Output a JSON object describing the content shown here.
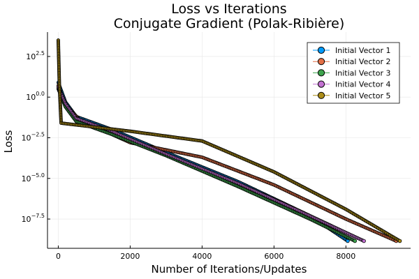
{
  "chart_data": {
    "type": "scatter",
    "title": "Loss vs Iterations",
    "subtitle": "Conjugate Gradient (Polak-Ribière)",
    "xlabel": "Number of Iterations/Updates",
    "ylabel": "Loss",
    "y_scale": "log10",
    "xlim": [
      -300,
      9800
    ],
    "ylim_log10": [
      -9.3,
      4.0
    ],
    "x_ticks": [
      {
        "value": 0,
        "label": "0"
      },
      {
        "value": 2000,
        "label": "2000"
      },
      {
        "value": 4000,
        "label": "4000"
      },
      {
        "value": 6000,
        "label": "6000"
      },
      {
        "value": 8000,
        "label": "8000"
      }
    ],
    "y_ticks": [
      {
        "exp": 2.5,
        "base": "10",
        "sup": "2.5"
      },
      {
        "exp": 0,
        "base": "10",
        "sup": "0.0"
      },
      {
        "exp": -2.5,
        "base": "10",
        "sup": "−2.5"
      },
      {
        "exp": -5.0,
        "base": "10",
        "sup": "−5.0"
      },
      {
        "exp": -7.5,
        "base": "10",
        "sup": "−7.5"
      }
    ],
    "grid": true,
    "legend_position": "top-right",
    "marker_stroke": "#000000",
    "series": [
      {
        "name": "Initial Vector 1",
        "color": "#009AFA",
        "points_log10": [
          [
            0,
            0.9
          ],
          [
            200,
            -0.3
          ],
          [
            500,
            -1.2
          ],
          [
            1500,
            -2.0
          ],
          [
            3000,
            -3.4
          ],
          [
            5000,
            -5.2
          ],
          [
            7000,
            -7.3
          ],
          [
            8050,
            -8.85
          ]
        ]
      },
      {
        "name": "Initial Vector 2",
        "color": "#E26F46",
        "points_log10": [
          [
            0,
            0.7
          ],
          [
            200,
            -0.5
          ],
          [
            600,
            -1.4
          ],
          [
            2000,
            -2.8
          ],
          [
            4000,
            -3.7
          ],
          [
            6000,
            -5.4
          ],
          [
            8000,
            -7.5
          ],
          [
            9400,
            -8.85
          ]
        ]
      },
      {
        "name": "Initial Vector 3",
        "color": "#3DA44D",
        "points_log10": [
          [
            0,
            0.5
          ],
          [
            200,
            -0.6
          ],
          [
            500,
            -1.5
          ],
          [
            1500,
            -2.3
          ],
          [
            3000,
            -3.6
          ],
          [
            5000,
            -5.5
          ],
          [
            7000,
            -7.5
          ],
          [
            8250,
            -8.85
          ]
        ]
      },
      {
        "name": "Initial Vector 4",
        "color": "#C371D2",
        "points_log10": [
          [
            0,
            0.6
          ],
          [
            200,
            -0.4
          ],
          [
            500,
            -1.3
          ],
          [
            1500,
            -2.1
          ],
          [
            3000,
            -3.5
          ],
          [
            5000,
            -5.3
          ],
          [
            7000,
            -7.3
          ],
          [
            8500,
            -8.85
          ]
        ]
      },
      {
        "name": "Initial Vector 5",
        "color": "#AC8D18",
        "points_log10": [
          [
            0,
            3.5
          ],
          [
            30,
            0.8
          ],
          [
            80,
            -1.6
          ],
          [
            2000,
            -2.1
          ],
          [
            4000,
            -2.7
          ],
          [
            6000,
            -4.6
          ],
          [
            8000,
            -6.9
          ],
          [
            9500,
            -8.85
          ]
        ]
      }
    ]
  }
}
